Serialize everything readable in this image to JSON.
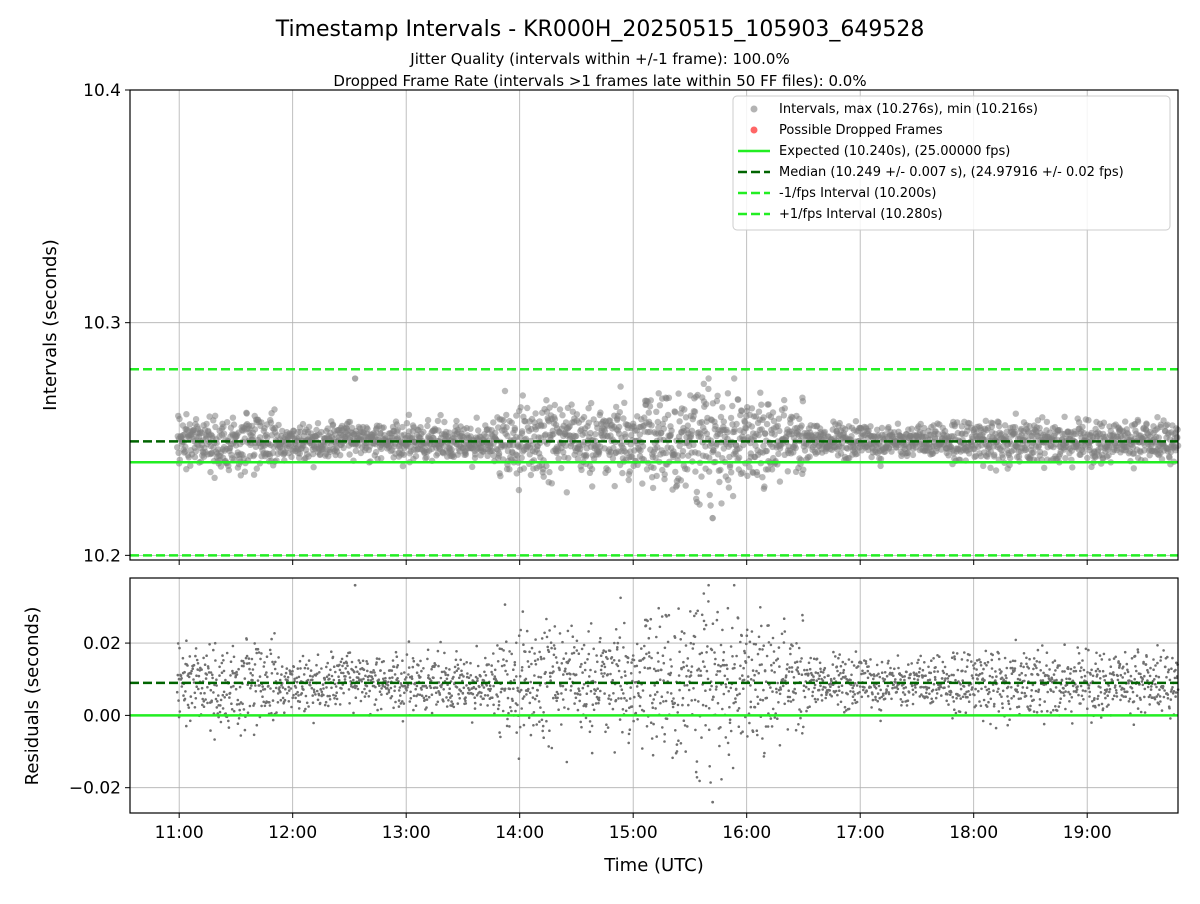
{
  "figure": {
    "title": "Timestamp Intervals - KR000H_20250515_105903_649528",
    "subtitle1": "Jitter Quality (intervals within +/-1 frame): 100.0%",
    "subtitle2": "Dropped Frame Rate (intervals >1 frames late within 50 FF files): 0.0%"
  },
  "colors": {
    "points": "#808080",
    "dropped": "#ff0000",
    "expected": "#22ee22",
    "median": "#006400",
    "bounds": "#22ee22",
    "grid": "#b0b0b0"
  },
  "chart_data": [
    {
      "type": "scatter",
      "ylabel": "Intervals (seconds)",
      "xlabel": "",
      "xlim": [
        "10:34",
        "19:48"
      ],
      "ylim": [
        10.198,
        10.4
      ],
      "yticks": [
        "10.2",
        "10.3",
        "10.4"
      ],
      "grid": true,
      "legend_position": "top-right",
      "series": [
        {
          "name": "Intervals, max (10.276s), min (10.216s)",
          "kind": "points",
          "x_range": [
            "10:59",
            "19:48"
          ],
          "max": 10.276,
          "min": 10.216,
          "typical_range": [
            10.23,
            10.262
          ]
        },
        {
          "name": "Possible Dropped Frames",
          "kind": "points",
          "values": []
        },
        {
          "name": "Expected (10.240s), (25.00000 fps)",
          "kind": "hline",
          "y": 10.24
        },
        {
          "name": "Median (10.249 +/- 0.007 s), (24.97916 +/- 0.02 fps)",
          "kind": "hline",
          "y": 10.249
        },
        {
          "name": "-1/fps Interval (10.200s)",
          "kind": "hline",
          "y": 10.2
        },
        {
          "name": "+1/fps Interval (10.280s)",
          "kind": "hline",
          "y": 10.28
        }
      ]
    },
    {
      "type": "scatter",
      "ylabel": "Residuals (seconds)",
      "xlabel": "Time (UTC)",
      "xlim": [
        "10:34",
        "19:48"
      ],
      "ylim": [
        -0.027,
        0.038
      ],
      "yticks": [
        "−0.02",
        "0.00",
        "0.02"
      ],
      "xticks": [
        "11:00",
        "12:00",
        "13:00",
        "14:00",
        "15:00",
        "16:00",
        "17:00",
        "18:00",
        "19:00"
      ],
      "grid": true,
      "series": [
        {
          "kind": "points",
          "x_range": [
            "10:59",
            "19:48"
          ],
          "max": 0.036,
          "min": -0.024
        },
        {
          "kind": "hline",
          "y": 0.0
        },
        {
          "kind": "hline",
          "y": 0.009
        }
      ]
    }
  ]
}
